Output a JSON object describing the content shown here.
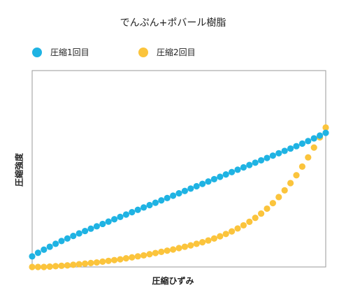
{
  "chart_data": {
    "type": "scatter",
    "title": "でんぷん+ポバール樹脂",
    "xlabel": "圧縮ひずみ",
    "ylabel": "圧縮強度",
    "xlim": [
      0,
      1
    ],
    "ylim": [
      0,
      1
    ],
    "grid": false,
    "legend_position": "top-left",
    "series": [
      {
        "name": "圧縮1回目",
        "color": "#1fb3e3",
        "x": [
          0.0,
          0.02,
          0.04,
          0.06,
          0.08,
          0.1,
          0.12,
          0.14,
          0.16,
          0.18,
          0.2,
          0.22,
          0.24,
          0.26,
          0.28,
          0.3,
          0.32,
          0.34,
          0.36,
          0.38,
          0.4,
          0.42,
          0.44,
          0.46,
          0.48,
          0.5,
          0.52,
          0.54,
          0.56,
          0.58,
          0.6,
          0.62,
          0.64,
          0.66,
          0.68,
          0.7,
          0.72,
          0.74,
          0.76,
          0.78,
          0.8,
          0.82,
          0.84,
          0.86,
          0.88,
          0.9,
          0.92,
          0.94,
          0.96,
          0.98,
          1.0
        ],
        "y": [
          0.054,
          0.072,
          0.088,
          0.103,
          0.118,
          0.132,
          0.145,
          0.158,
          0.171,
          0.183,
          0.195,
          0.207,
          0.219,
          0.231,
          0.243,
          0.255,
          0.267,
          0.279,
          0.291,
          0.303,
          0.315,
          0.327,
          0.339,
          0.351,
          0.363,
          0.375,
          0.387,
          0.399,
          0.411,
          0.423,
          0.435,
          0.447,
          0.459,
          0.471,
          0.483,
          0.495,
          0.507,
          0.519,
          0.531,
          0.543,
          0.555,
          0.567,
          0.579,
          0.591,
          0.603,
          0.615,
          0.628,
          0.641,
          0.655,
          0.669,
          0.683
        ]
      },
      {
        "name": "圧縮2回目",
        "color": "#fbc43c",
        "x": [
          0.0,
          0.02,
          0.04,
          0.06,
          0.08,
          0.1,
          0.12,
          0.14,
          0.16,
          0.18,
          0.2,
          0.22,
          0.24,
          0.26,
          0.28,
          0.3,
          0.32,
          0.34,
          0.36,
          0.38,
          0.4,
          0.42,
          0.44,
          0.46,
          0.48,
          0.5,
          0.52,
          0.54,
          0.56,
          0.58,
          0.6,
          0.62,
          0.64,
          0.66,
          0.68,
          0.7,
          0.72,
          0.74,
          0.76,
          0.78,
          0.8,
          0.82,
          0.84,
          0.86,
          0.88,
          0.9,
          0.92,
          0.94,
          0.96,
          0.98,
          1.0
        ],
        "y": [
          0.0,
          0.0,
          0.0,
          0.002,
          0.004,
          0.006,
          0.008,
          0.011,
          0.014,
          0.017,
          0.02,
          0.023,
          0.027,
          0.031,
          0.035,
          0.039,
          0.044,
          0.049,
          0.054,
          0.059,
          0.065,
          0.071,
          0.077,
          0.083,
          0.089,
          0.096,
          0.103,
          0.11,
          0.118,
          0.126,
          0.135,
          0.145,
          0.156,
          0.168,
          0.181,
          0.196,
          0.212,
          0.23,
          0.25,
          0.272,
          0.297,
          0.325,
          0.356,
          0.39,
          0.427,
          0.467,
          0.511,
          0.558,
          0.608,
          0.66,
          0.71
        ]
      }
    ]
  }
}
